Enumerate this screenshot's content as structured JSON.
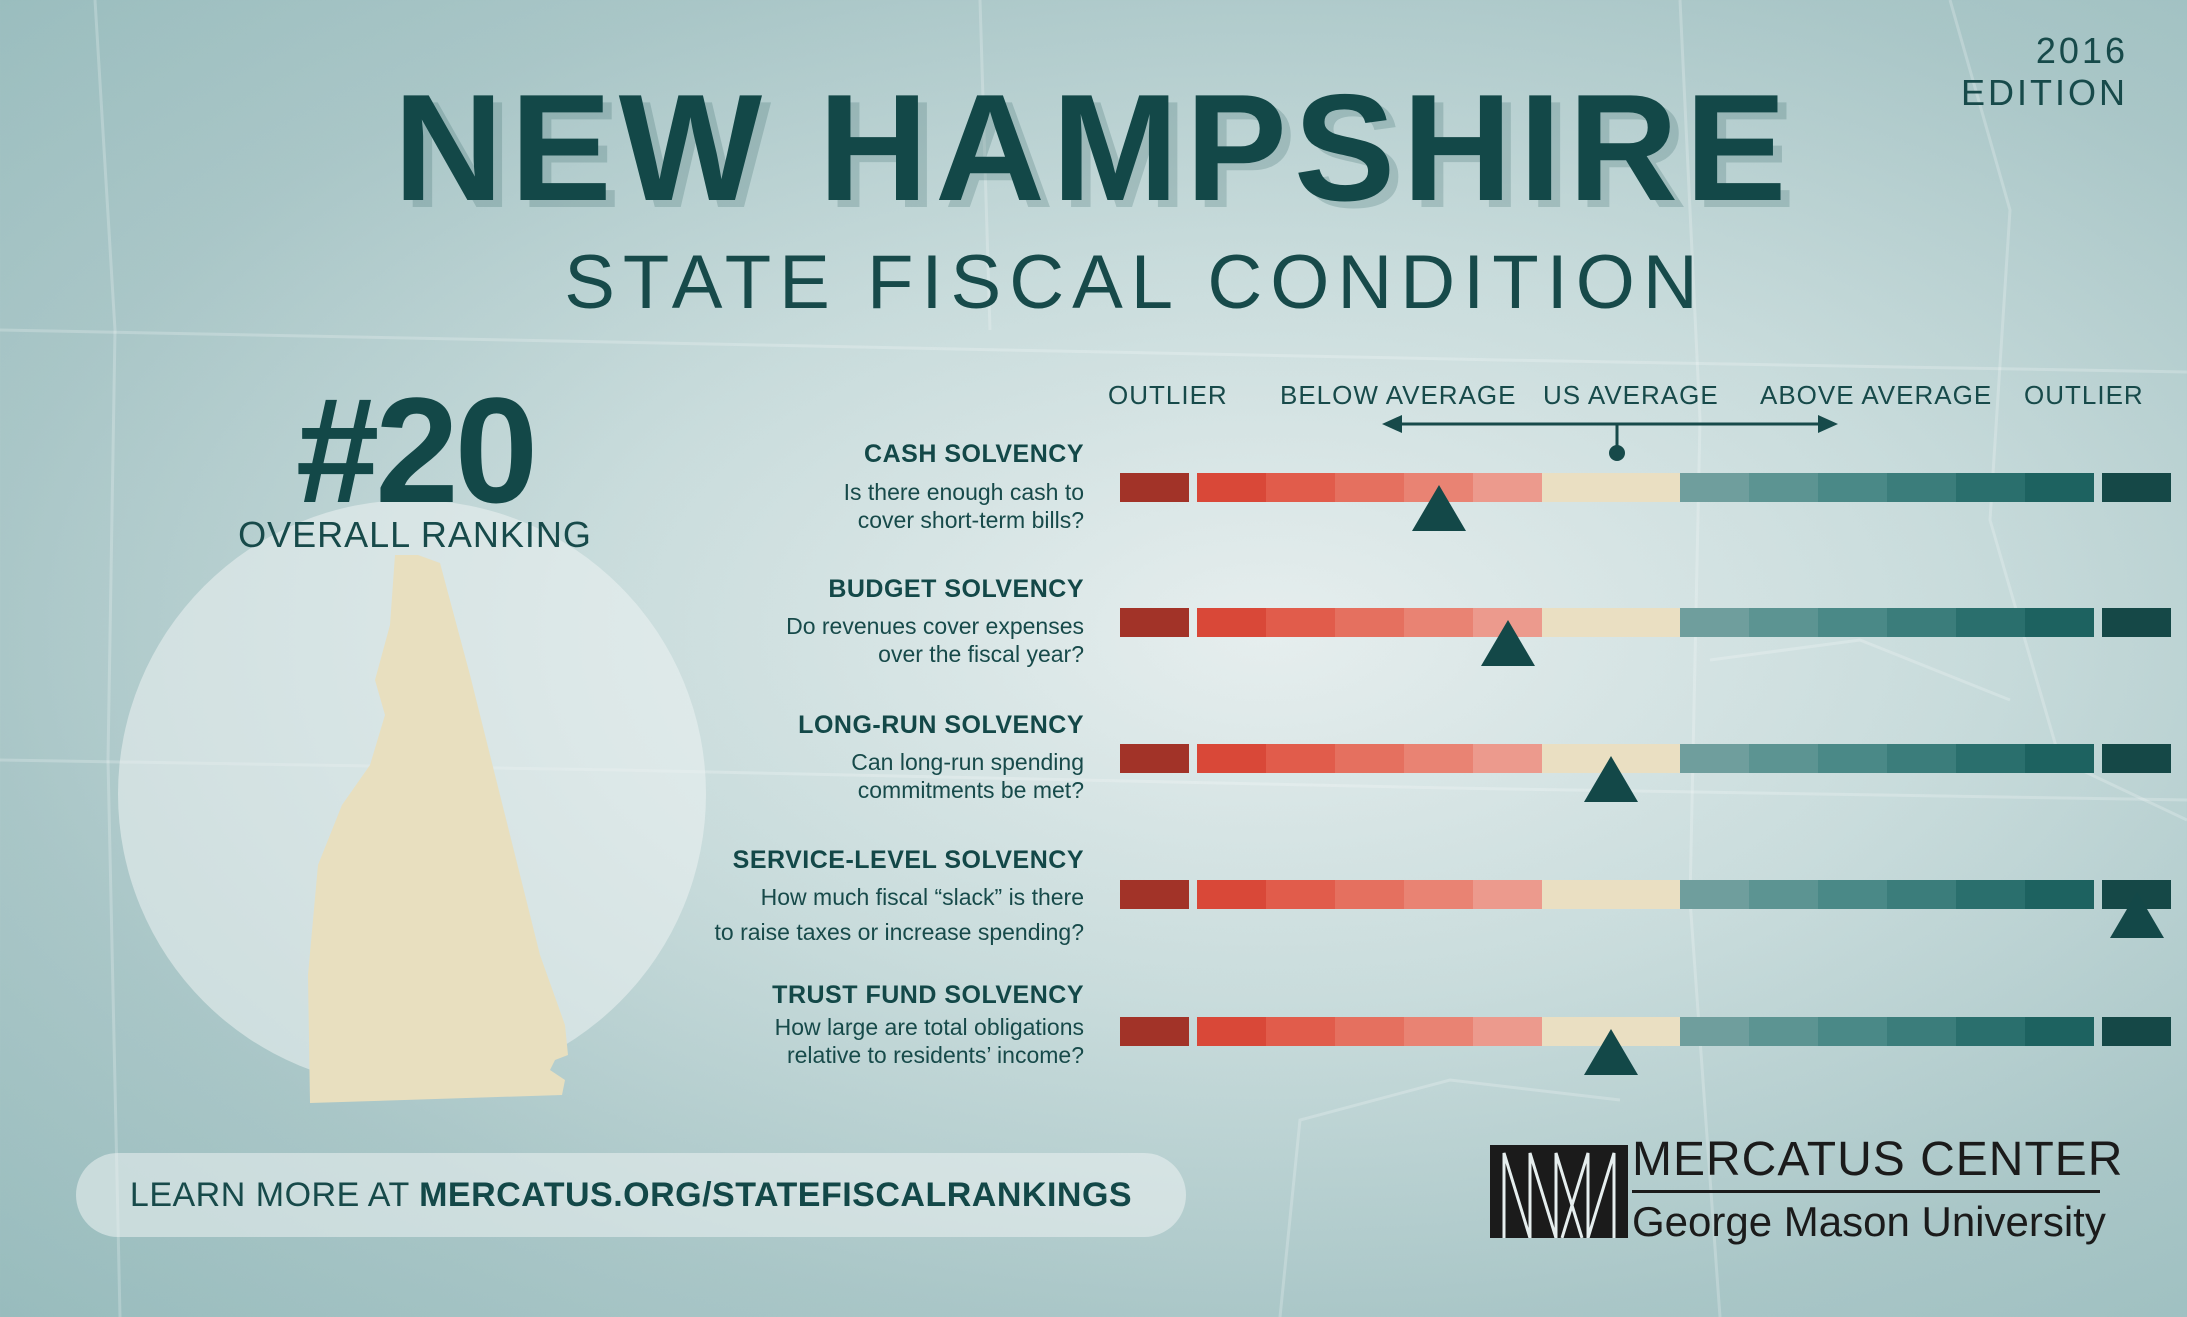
{
  "edition": "2016 EDITION",
  "title": "NEW HAMPSHIRE",
  "subtitle": "STATE FISCAL CONDITION",
  "ranking": {
    "number": "#20",
    "label": "OVERALL RANKING"
  },
  "scale": {
    "labels": [
      "OUTLIER",
      "BELOW AVERAGE",
      "US AVERAGE",
      "ABOVE AVERAGE",
      "OUTLIER"
    ],
    "segment_colors": [
      "#a23328",
      "#d94838",
      "#e15c4b",
      "#e5705f",
      "#e98373",
      "#ec9a8d",
      "#eadfc2",
      "#eadfc2",
      "#6f9e9d",
      "#5c9492",
      "#4a8987",
      "#3b7d7b",
      "#2a6f6d",
      "#1d6260",
      "#154847"
    ]
  },
  "metrics": [
    {
      "title": "CASH SOLVENCY",
      "question_lines": [
        "Is there enough cash to",
        "cover short-term bills?"
      ],
      "marker_segment": 4.5
    },
    {
      "title": "BUDGET SOLVENCY",
      "question_lines": [
        "Do revenues cover expenses",
        "over the fiscal year?"
      ],
      "marker_segment": 5.5
    },
    {
      "title": "LONG-RUN SOLVENCY",
      "question_lines": [
        "Can long-run spending",
        "commitments be met?"
      ],
      "marker_segment": 7.0
    },
    {
      "title": "SERVICE-LEVEL SOLVENCY",
      "question_lines": [
        "How much fiscal “slack” is there",
        "to raise taxes or increase spending?"
      ],
      "marker_segment": 14.5
    },
    {
      "title": "TRUST FUND SOLVENCY",
      "question_lines": [
        "How large are total obligations",
        "relative to residents’ income?"
      ],
      "marker_segment": 7.0
    }
  ],
  "learn_more": {
    "prefix": "LEARN MORE AT ",
    "url": "MERCATUS.ORG/STATEFISCALRANKINGS"
  },
  "logo": {
    "name": "MERCATUS CENTER",
    "sub": "George Mason University"
  }
}
